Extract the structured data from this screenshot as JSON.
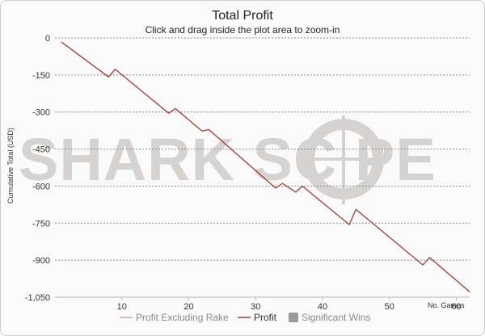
{
  "chart_data": {
    "type": "line",
    "title": "Total Profit",
    "subtitle": "Click and drag inside the plot area to zoom-in",
    "xlabel": "No. Games",
    "ylabel": "Cumulative Total (USD)",
    "xlim": [
      0,
      62
    ],
    "ylim": [
      -1050,
      0
    ],
    "x_ticks": [
      10,
      20,
      30,
      40,
      50,
      60
    ],
    "y_ticks": [
      0,
      -150,
      -300,
      -450,
      -600,
      -750,
      -900,
      -1050
    ],
    "y_tick_labels": [
      "0",
      "-150",
      "-300",
      "-450",
      "-600",
      "-750",
      "-900",
      "-1,050"
    ],
    "grid": "horizontal dashed",
    "legend_position": "bottom-right",
    "watermark_text": "SHARK SC PE",
    "series": [
      {
        "name": "Profit Excluding Rake",
        "color": "#c9a79e",
        "x": [],
        "y": []
      },
      {
        "name": "Profit",
        "color": "#a43a2e",
        "x": [
          1,
          8,
          9,
          17,
          18,
          22,
          23,
          33,
          34,
          36,
          37,
          44,
          45,
          55,
          56,
          62
        ],
        "y": [
          -17,
          -158,
          -127,
          -305,
          -286,
          -377,
          -371,
          -608,
          -589,
          -624,
          -600,
          -756,
          -694,
          -919,
          -889,
          -1028
        ]
      },
      {
        "name": "Significant Wins",
        "color": "#9a9a9a",
        "x": [],
        "y": []
      }
    ]
  }
}
